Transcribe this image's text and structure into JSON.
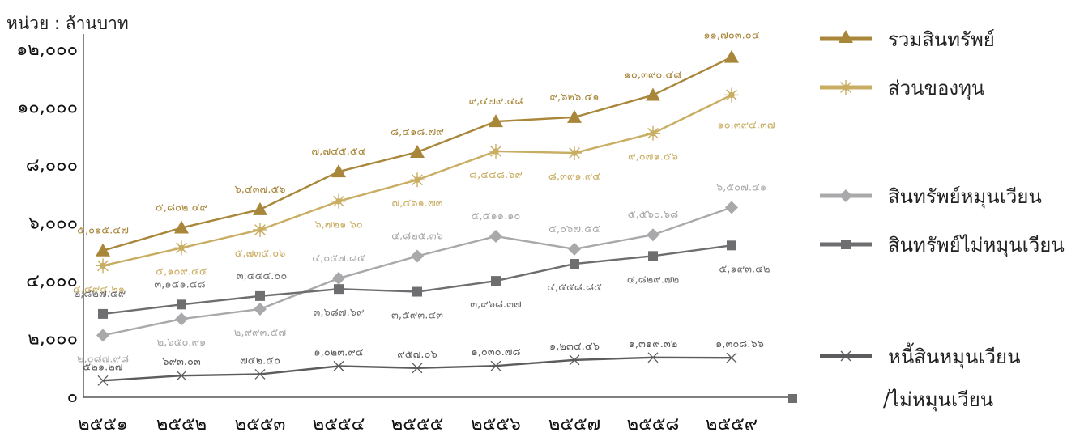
{
  "chart_data": {
    "type": "line",
    "unit_label": "หน่วย : ล้านบาท",
    "categories": [
      "๒๕๕๑",
      "๒๕๕๒",
      "๒๕๕๓",
      "๒๕๕๔",
      "๒๕๕๕",
      "๒๕๕๖",
      "๒๕๕๗",
      "๒๕๕๘",
      "๒๕๕๙"
    ],
    "y_ticks": [
      "๐",
      "๒,๐๐๐",
      "๔,๐๐๐",
      "๖,๐๐๐",
      "๘,๐๐๐",
      "๑๐,๐๐๐",
      "๑๒,๐๐๐"
    ],
    "ylim": [
      0,
      12000
    ],
    "grid": false,
    "legend_position": "right",
    "colors": {
      "total_assets": "#a8863a",
      "equity": "#c9ad62",
      "current_assets": "#a9a9ab",
      "noncurrent_assets": "#6e6e70",
      "liabilities": "#5c5c5e",
      "axis": "#333333",
      "tick_text": "#111111"
    },
    "series": [
      {
        "key": "total_assets",
        "name": "รวมสินทรัพย์",
        "marker": "triangle",
        "values": [
          5015.47,
          5802.49,
          6437.56,
          7745.54,
          8418.79,
          9479.48,
          9626.41,
          10390.48,
          11703.04
        ],
        "labels": [
          "๕,๐๑๕.๔๗",
          "๕,๘๐๒.๔๙",
          "๖,๔๓๗.๕๖",
          "๗,๗๔๕.๕๔",
          "๘,๔๑๘.๗๙",
          "๙,๔๗๙.๔๘",
          "๙,๖๒๖.๔๑",
          "๑๐,๓๙๐.๔๘",
          "๑๑,๗๐๓.๐๔"
        ]
      },
      {
        "key": "equity",
        "name": "ส่วนของทุน",
        "marker": "star",
        "values": [
          4494.21,
          5109.45,
          5735.06,
          6721.6,
          7461.73,
          8448.69,
          8391.94,
          9071.56,
          10394.37
        ],
        "labels": [
          "๔,๔๙๔.๒๑",
          "๕,๑๐๙.๔๕",
          "๕,๗๓๕.๐๖",
          "๖,๗๒๑.๖๐",
          "๗,๔๖๑.๗๓",
          "๘,๔๔๘.๖๙",
          "๘,๓๙๑.๙๔",
          "๙,๐๗๑.๕๖",
          "๑๐,๓๙๔.๓๗"
        ]
      },
      {
        "key": "current_assets",
        "name": "สินทรัพย์หมุนเวียน",
        "marker": "diamond",
        "values": [
          2087.98,
          2650.91,
          2993.57,
          4057.85,
          4825.36,
          5511.1,
          5067.55,
          5560.68,
          6507.41
        ],
        "labels": [
          "๒,๐๘๗.๙๘",
          "๒,๖๕๐.๙๑",
          "๒,๙๙๓.๕๗",
          "๔,๐๕๗.๘๕",
          "๔,๘๒๕.๓๖",
          "๕,๕๑๑.๑๐",
          "๕,๐๖๗.๕๕",
          "๕,๕๖๐.๖๘",
          "๖,๕๐๗.๔๑"
        ]
      },
      {
        "key": "noncurrent_assets",
        "name": "สินทรัพย์ไม่หมุนเวียน",
        "marker": "square",
        "values": [
          2827.49,
          3151.58,
          3444.0,
          3687.69,
          3593.43,
          3968.37,
          4558.85,
          4829.72,
          5193.42
        ],
        "labels": [
          "๒,๘๒๗.๔๙",
          "๓,๑๕๑.๕๘",
          "๓,๔๔๔.๐๐",
          "๓,๖๘๗.๖๙",
          "๓,๕๙๓.๔๓",
          "๓,๙๖๘.๓๗",
          "๔,๕๕๘.๘๕",
          "๔,๘๒๙.๗๒",
          "๕,๑๙๓.๔๒"
        ]
      },
      {
        "key": "liabilities",
        "name": "หนี้สินหมุนเวียน",
        "name_line2": "/ไม่หมุนเวียน",
        "marker": "cross",
        "values": [
          521.27,
          693.03,
          742.5,
          1023.94,
          957.06,
          1030.78,
          1234.46,
          1319.32,
          1308.66
        ],
        "labels": [
          "๕๒๑.๒๗",
          "๖๙๓.๐๓",
          "๗๔๒.๕๐",
          "๑,๐๒๓.๙๔",
          "๙๕๗.๐๖",
          "๑,๐๓๐.๗๘",
          "๑,๒๓๔.๔๖",
          "๑,๓๑๙.๓๒",
          "๑,๓๐๘.๖๖"
        ]
      }
    ]
  }
}
